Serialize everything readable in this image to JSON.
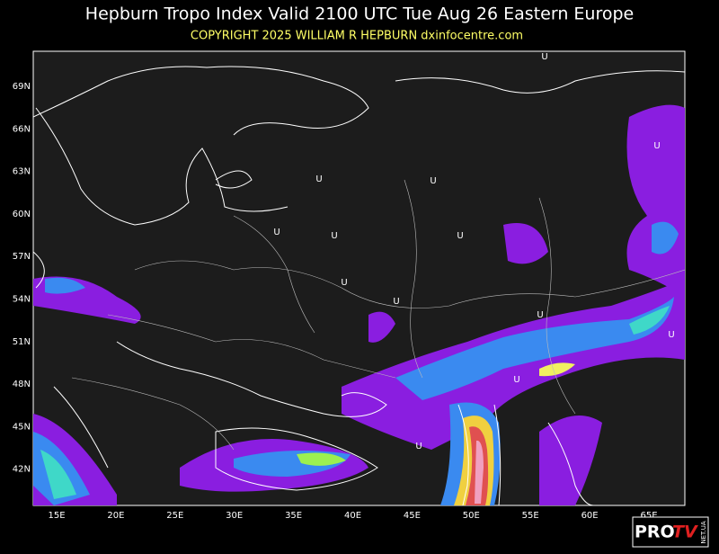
{
  "header": {
    "title": "Hepburn Tropo Index Valid 2100 UTC Tue Aug 26 Eastern Europe",
    "copyright": "COPYRIGHT 2025  WILLIAM R HEPBURN  dxinfocentre.com"
  },
  "map": {
    "latitude_labels": [
      "69N",
      "66N",
      "63N",
      "60N",
      "57N",
      "54N",
      "51N",
      "48N",
      "45N",
      "42N"
    ],
    "longitude_labels": [
      "15E",
      "20E",
      "25E",
      "30E",
      "35E",
      "40E",
      "45E",
      "50E",
      "55E",
      "60E",
      "65E"
    ],
    "markers": [
      "U",
      "U",
      "U",
      "U",
      "U",
      "U",
      "U",
      "U",
      "U",
      "U",
      "U",
      "U",
      "U"
    ]
  },
  "logo": {
    "brand": "PRO",
    "brand_accent": "TV",
    "domain": "NET.UA"
  }
}
